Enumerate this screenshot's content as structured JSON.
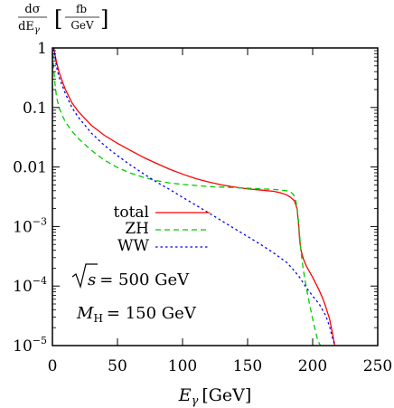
{
  "chart_data": {
    "type": "line",
    "ylabel": {
      "num": "dσ",
      "den_d": "dE",
      "den_sub": "γ",
      "unit_num": "fb",
      "unit_den": "GeV"
    },
    "xlabel": {
      "var": "E",
      "sub": "γ",
      "unit": "[GeV]"
    },
    "x_scale": "linear",
    "y_scale": "log",
    "xlim": [
      0,
      250
    ],
    "ylim": [
      1e-05,
      1
    ],
    "x_ticks": [
      {
        "value": 0,
        "label": "0"
      },
      {
        "value": 50,
        "label": "50"
      },
      {
        "value": 100,
        "label": "100"
      },
      {
        "value": 150,
        "label": "150"
      },
      {
        "value": 200,
        "label": "200"
      },
      {
        "value": 250,
        "label": "250"
      }
    ],
    "y_ticks": [
      {
        "value": 1,
        "mant": "1",
        "exp": ""
      },
      {
        "value": 0.1,
        "mant": "0.1",
        "exp": ""
      },
      {
        "value": 0.01,
        "mant": "0.01",
        "exp": ""
      },
      {
        "value": 0.001,
        "mant": "10",
        "exp": "−3"
      },
      {
        "value": 0.0001,
        "mant": "10",
        "exp": "−4"
      },
      {
        "value": 1e-05,
        "mant": "10",
        "exp": "−5"
      }
    ],
    "legend_position": "center-left",
    "annotations": {
      "sqrt_s": "s",
      "sqrt_s_value": "= 500 GeV",
      "mass_symbol": "M",
      "mass_sub": "H",
      "mass_value": "= 150 GeV"
    },
    "series": [
      {
        "name": "total",
        "color": "#ff0000",
        "dash": "solid",
        "x": [
          1,
          3,
          5,
          8,
          10,
          15,
          20,
          30,
          40,
          50,
          60,
          70,
          80,
          90,
          100,
          110,
          120,
          130,
          140,
          150,
          160,
          170,
          175,
          180,
          183,
          186,
          188,
          189,
          190,
          191,
          193,
          195,
          200,
          205,
          208,
          210,
          213,
          215,
          217
        ],
        "y": [
          1,
          0.6,
          0.4,
          0.26,
          0.2,
          0.12,
          0.085,
          0.05,
          0.034,
          0.025,
          0.019,
          0.0145,
          0.0115,
          0.0092,
          0.0076,
          0.0064,
          0.0056,
          0.005,
          0.0046,
          0.0043,
          0.0041,
          0.0039,
          0.0037,
          0.0034,
          0.0031,
          0.0027,
          0.002,
          0.0012,
          0.0006,
          0.0004,
          0.00028,
          0.00022,
          0.00014,
          8.5e-05,
          6e-05,
          4.5e-05,
          2.8e-05,
          1.7e-05,
          1e-05
        ]
      },
      {
        "name": "ZH",
        "color": "#00cc00",
        "dash": "dashed",
        "x": [
          0.5,
          1,
          2,
          3,
          5,
          8,
          10,
          15,
          20,
          30,
          40,
          50,
          60,
          70,
          80,
          90,
          100,
          110,
          120,
          130,
          140,
          150,
          160,
          170,
          175,
          180,
          183,
          185,
          186,
          187,
          188,
          189,
          190,
          191,
          192,
          194,
          196,
          198,
          200,
          202,
          204,
          206
        ],
        "y": [
          0.8,
          0.45,
          0.25,
          0.16,
          0.1,
          0.07,
          0.057,
          0.04,
          0.03,
          0.019,
          0.013,
          0.0098,
          0.0079,
          0.0067,
          0.0059,
          0.0054,
          0.0051,
          0.0049,
          0.0047,
          0.0046,
          0.0045,
          0.0044,
          0.0043,
          0.0042,
          0.0041,
          0.004,
          0.0038,
          0.0035,
          0.0032,
          0.0027,
          0.0021,
          0.0013,
          0.0007,
          0.0004,
          0.00025,
          0.00013,
          7.5e-05,
          4.5e-05,
          2.8e-05,
          1.8e-05,
          1.2e-05,
          1e-05
        ]
      },
      {
        "name": "WW",
        "color": "#0000ff",
        "dash": "dotted",
        "x": [
          1,
          3,
          5,
          8,
          10,
          15,
          20,
          30,
          40,
          50,
          60,
          70,
          80,
          90,
          100,
          110,
          120,
          130,
          140,
          150,
          160,
          170,
          180,
          185,
          190,
          195,
          200,
          205,
          210,
          213,
          215,
          217
        ],
        "y": [
          1,
          0.5,
          0.33,
          0.22,
          0.17,
          0.1,
          0.068,
          0.037,
          0.023,
          0.0155,
          0.0108,
          0.0077,
          0.0056,
          0.0042,
          0.0031,
          0.0023,
          0.0017,
          0.00125,
          0.00092,
          0.00068,
          0.0005,
          0.00036,
          0.00025,
          0.00019,
          0.00014,
          9.5e-05,
          6.8e-05,
          5e-05,
          3.2e-05,
          2.1e-05,
          1.4e-05,
          1e-05
        ]
      }
    ]
  }
}
